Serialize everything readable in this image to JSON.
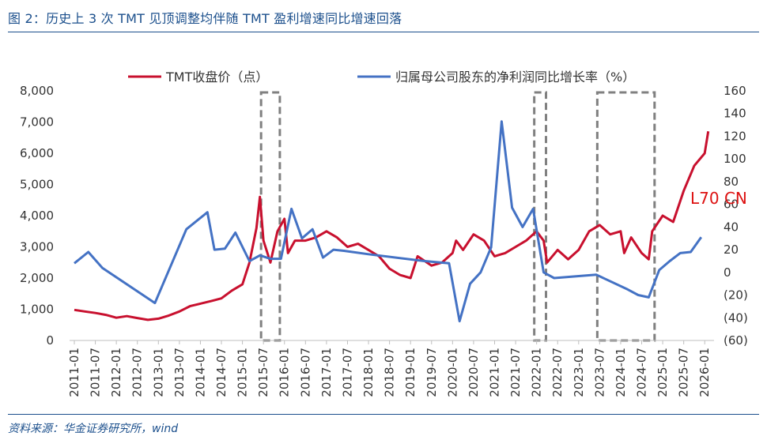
{
  "header": {
    "title": "图 2：历史上 3 次 TMT 见顶调整均伴随 TMT 盈利增速同比增速回落",
    "source": "资料来源：华金证券研究所，wind"
  },
  "watermark": "L70 CN",
  "colors": {
    "series_price": "#c8102e",
    "series_growth": "#4472c4",
    "negative_label": "#c00000",
    "box": "#808080",
    "rule": "#1b4f8c"
  },
  "chart_data": {
    "type": "line",
    "x_ticks": [
      "2011-01",
      "2011-07",
      "2012-01",
      "2012-07",
      "2013-01",
      "2013-07",
      "2014-01",
      "2014-07",
      "2015-01",
      "2015-07",
      "2016-01",
      "2016-07",
      "2017-01",
      "2017-07",
      "2018-01",
      "2018-07",
      "2019-01",
      "2019-07",
      "2020-01",
      "2020-07",
      "2021-01",
      "2021-07",
      "2022-01",
      "2022-07",
      "2023-01",
      "2023-07",
      "2024-01",
      "2024-07",
      "2025-01",
      "2025-07",
      "2026-01"
    ],
    "y_left": {
      "ylim": [
        0,
        8000
      ],
      "ticks": [
        "0",
        "1,000",
        "2,000",
        "3,000",
        "4,000",
        "5,000",
        "6,000",
        "7,000",
        "8,000"
      ]
    },
    "y_right": {
      "ylim": [
        -60,
        160
      ],
      "ticks": [
        "(60)",
        "(40)",
        "(20)",
        "0",
        "20",
        "40",
        "60",
        "80",
        "100",
        "120",
        "140",
        "160"
      ]
    },
    "legend_placement": "top",
    "series": [
      {
        "name": "TMT收盘价（点）",
        "axis": "left",
        "points": [
          [
            "2011-01",
            980
          ],
          [
            "2011-04",
            930
          ],
          [
            "2011-07",
            880
          ],
          [
            "2011-10",
            820
          ],
          [
            "2012-01",
            730
          ],
          [
            "2012-04",
            780
          ],
          [
            "2012-07",
            720
          ],
          [
            "2012-10",
            660
          ],
          [
            "2013-01",
            700
          ],
          [
            "2013-04",
            800
          ],
          [
            "2013-07",
            930
          ],
          [
            "2013-10",
            1100
          ],
          [
            "2014-01",
            1180
          ],
          [
            "2014-04",
            1260
          ],
          [
            "2014-07",
            1350
          ],
          [
            "2014-10",
            1600
          ],
          [
            "2015-01",
            1800
          ],
          [
            "2015-03",
            2500
          ],
          [
            "2015-05",
            3600
          ],
          [
            "2015-06",
            4600
          ],
          [
            "2015-07",
            3200
          ],
          [
            "2015-09",
            2500
          ],
          [
            "2015-11",
            3500
          ],
          [
            "2016-01",
            3900
          ],
          [
            "2016-02",
            2800
          ],
          [
            "2016-04",
            3200
          ],
          [
            "2016-07",
            3200
          ],
          [
            "2016-10",
            3300
          ],
          [
            "2017-01",
            3500
          ],
          [
            "2017-04",
            3300
          ],
          [
            "2017-07",
            3000
          ],
          [
            "2017-10",
            3100
          ],
          [
            "2018-01",
            2900
          ],
          [
            "2018-04",
            2700
          ],
          [
            "2018-07",
            2300
          ],
          [
            "2018-10",
            2100
          ],
          [
            "2019-01",
            2000
          ],
          [
            "2019-03",
            2700
          ],
          [
            "2019-07",
            2400
          ],
          [
            "2019-10",
            2500
          ],
          [
            "2020-01",
            2800
          ],
          [
            "2020-02",
            3200
          ],
          [
            "2020-04",
            2900
          ],
          [
            "2020-07",
            3400
          ],
          [
            "2020-10",
            3200
          ],
          [
            "2021-01",
            2700
          ],
          [
            "2021-04",
            2800
          ],
          [
            "2021-07",
            3000
          ],
          [
            "2021-10",
            3200
          ],
          [
            "2022-01",
            3500
          ],
          [
            "2022-03",
            3200
          ],
          [
            "2022-04",
            2500
          ],
          [
            "2022-07",
            2900
          ],
          [
            "2022-10",
            2600
          ],
          [
            "2023-01",
            2900
          ],
          [
            "2023-04",
            3500
          ],
          [
            "2023-07",
            3700
          ],
          [
            "2023-10",
            3400
          ],
          [
            "2024-01",
            3500
          ],
          [
            "2024-02",
            2800
          ],
          [
            "2024-04",
            3300
          ],
          [
            "2024-07",
            2800
          ],
          [
            "2024-09",
            2600
          ],
          [
            "2024-10",
            3500
          ],
          [
            "2025-01",
            4000
          ],
          [
            "2025-04",
            3800
          ],
          [
            "2025-07",
            4800
          ],
          [
            "2025-10",
            5600
          ],
          [
            "2026-01",
            6000
          ],
          [
            "2026-02",
            6700
          ]
        ]
      },
      {
        "name": "归属母公司股东的净利润同比增长率（%）",
        "axis": "right",
        "points": [
          [
            "2011-01",
            8
          ],
          [
            "2011-05",
            18
          ],
          [
            "2011-09",
            4
          ],
          [
            "2012-12",
            -27
          ],
          [
            "2013-09",
            38
          ],
          [
            "2014-03",
            53
          ],
          [
            "2014-05",
            20
          ],
          [
            "2014-08",
            21
          ],
          [
            "2014-11",
            35
          ],
          [
            "2015-03",
            10
          ],
          [
            "2015-06",
            15
          ],
          [
            "2015-09",
            12
          ],
          [
            "2015-12",
            12
          ],
          [
            "2016-03",
            56
          ],
          [
            "2016-06",
            30
          ],
          [
            "2016-09",
            38
          ],
          [
            "2016-12",
            13
          ],
          [
            "2017-03",
            20
          ],
          [
            "2017-06",
            19
          ],
          [
            "2018-01",
            16
          ],
          [
            "2019-05",
            10
          ],
          [
            "2019-12",
            8
          ],
          [
            "2020-03",
            -43
          ],
          [
            "2020-06",
            -10
          ],
          [
            "2020-09",
            0
          ],
          [
            "2020-12",
            22
          ],
          [
            "2021-03",
            133
          ],
          [
            "2021-06",
            57
          ],
          [
            "2021-09",
            40
          ],
          [
            "2021-12",
            56
          ],
          [
            "2022-03",
            0
          ],
          [
            "2022-06",
            -5
          ],
          [
            "2023-06",
            -2
          ],
          [
            "2024-03",
            -15
          ],
          [
            "2024-06",
            -20
          ],
          [
            "2024-09",
            -22
          ],
          [
            "2024-12",
            2
          ],
          [
            "2025-03",
            10
          ],
          [
            "2025-06",
            17
          ],
          [
            "2025-09",
            18
          ],
          [
            "2025-12",
            31
          ]
        ]
      }
    ],
    "highlight_periods": [
      [
        "2015-07",
        "2015-11"
      ],
      [
        "2022-01",
        "2022-03"
      ],
      [
        "2023-07",
        "2024-10"
      ]
    ]
  }
}
